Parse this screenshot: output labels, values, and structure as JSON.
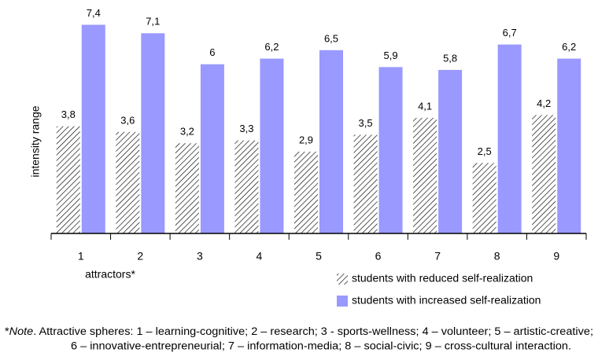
{
  "chart_data": {
    "type": "bar",
    "y_label": "intensity range",
    "x_label": "attractors*",
    "categories": [
      "1",
      "2",
      "3",
      "4",
      "5",
      "6",
      "7",
      "8",
      "9"
    ],
    "series": [
      {
        "name": "students with reduced self-realization",
        "color": "#000000",
        "pattern": "hatch",
        "values": [
          3.8,
          3.6,
          3.2,
          3.3,
          2.9,
          3.5,
          4.1,
          2.5,
          4.2
        ],
        "value_labels": [
          "3,8",
          "3,6",
          "3,2",
          "3,3",
          "2,9",
          "3,5",
          "4,1",
          "2,5",
          "4,2"
        ]
      },
      {
        "name": "students with increased self-realization",
        "color": "#9999ff",
        "pattern": "solid",
        "values": [
          7.4,
          7.1,
          6,
          6.2,
          6.5,
          5.9,
          5.8,
          6.7,
          6.2
        ],
        "value_labels": [
          "7,4",
          "7,1",
          "6",
          "6,2",
          "6,5",
          "5,9",
          "5,8",
          "6,7",
          "6,2"
        ]
      }
    ],
    "ylim": [
      0,
      8
    ],
    "legend": "bottom-right"
  },
  "note": {
    "mark": "*",
    "label": "Note",
    "lines": [
      ". Attractive spheres: 1 – learning-cognitive; 2 – research; 3 - sports-wellness; 4 – volunteer; 5 – artistic-creative;",
      "6 – innovative-entrepreneurial; 7 – information-media; 8 – social-civic; 9 – cross-cultural interaction."
    ]
  }
}
